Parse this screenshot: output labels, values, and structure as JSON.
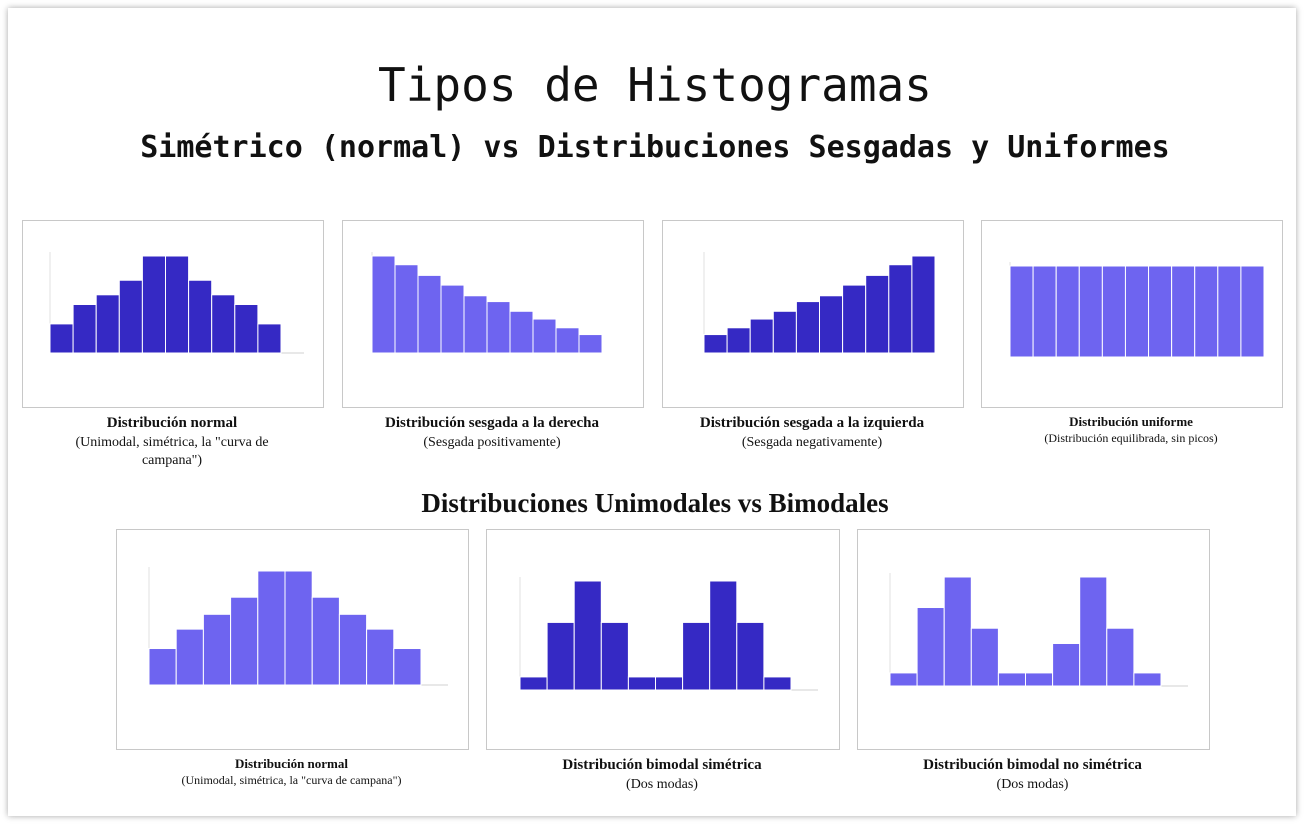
{
  "title": "Tipos de Histogramas",
  "subtitle": "Simétrico (normal) vs Distribuciones Sesgadas y Uniformes",
  "section_title": "Distribuciones Unimodales vs Bimodales",
  "chart_data": [
    {
      "type": "bar",
      "color": "#3529c4",
      "ylim": [
        0,
        10
      ],
      "values": [
        3,
        5,
        6,
        7.5,
        10,
        10,
        7.5,
        6,
        5,
        3
      ],
      "caption_title": "Distribución normal",
      "caption_subtitle": "(Unimodal, simétrica, la \"curva de campana\")"
    },
    {
      "type": "bar",
      "color": "#6e64f0",
      "ylim": [
        0,
        10
      ],
      "values": [
        10,
        9.1,
        8,
        7,
        5.9,
        5.3,
        4.3,
        3.5,
        2.6,
        1.9
      ],
      "caption_title": "Distribución sesgada a la derecha",
      "caption_subtitle": "(Sesgada positivamente)"
    },
    {
      "type": "bar",
      "color": "#3529c4",
      "ylim": [
        0,
        10
      ],
      "values": [
        1.9,
        2.6,
        3.5,
        4.3,
        5.3,
        5.9,
        7,
        8,
        9.1,
        10
      ],
      "caption_title": "Distribución sesgada a la izquierda",
      "caption_subtitle": "(Sesgada negativamente)"
    },
    {
      "type": "bar",
      "color": "#6e64f0",
      "ylim": [
        0,
        10
      ],
      "values": [
        10,
        10,
        10,
        10,
        10,
        10,
        10,
        10,
        10,
        10,
        10
      ],
      "caption_title": "Distribución uniforme",
      "caption_subtitle": "(Distribución equilibrada, sin picos)"
    },
    {
      "type": "bar",
      "color": "#6e64f0",
      "ylim": [
        0,
        10
      ],
      "values": [
        3.2,
        4.9,
        6.2,
        7.7,
        10,
        10,
        7.7,
        6.2,
        4.9,
        3.2
      ],
      "caption_title": "Distribución normal",
      "caption_subtitle": "(Unimodal, simétrica, la \"curva de campana\")"
    },
    {
      "type": "bar",
      "color": "#3529c4",
      "ylim": [
        0,
        10
      ],
      "values": [
        1.2,
        6.2,
        10,
        6.2,
        1.2,
        1.2,
        6.2,
        10,
        6.2,
        1.2
      ],
      "caption_title": "Distribución bimodal simétrica",
      "caption_subtitle": "(Dos modas)"
    },
    {
      "type": "bar",
      "color": "#6e64f0",
      "ylim": [
        0,
        10
      ],
      "values": [
        1.2,
        7.2,
        10,
        5.3,
        1.2,
        1.2,
        3.9,
        10,
        5.3,
        1.2
      ],
      "caption_title": "Distribución bimodal no simétrica",
      "caption_subtitle": "(Dos modas)"
    }
  ]
}
